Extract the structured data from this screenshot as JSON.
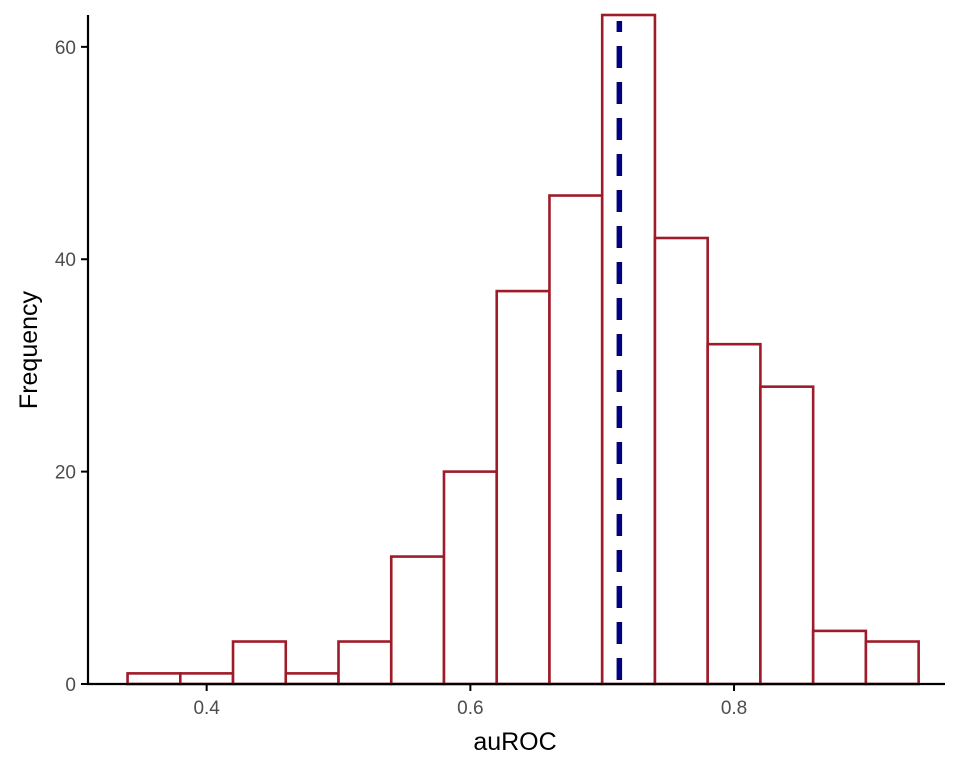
{
  "chart_data": {
    "type": "bar",
    "subtype": "histogram",
    "title": "",
    "xlabel": "auROC",
    "ylabel": "Frequency",
    "bin_width": 0.04,
    "bins": [
      {
        "start": 0.34,
        "end": 0.38,
        "count": 1
      },
      {
        "start": 0.38,
        "end": 0.42,
        "count": 1
      },
      {
        "start": 0.42,
        "end": 0.46,
        "count": 4
      },
      {
        "start": 0.46,
        "end": 0.5,
        "count": 1
      },
      {
        "start": 0.5,
        "end": 0.54,
        "count": 4
      },
      {
        "start": 0.54,
        "end": 0.58,
        "count": 12
      },
      {
        "start": 0.58,
        "end": 0.62,
        "count": 20
      },
      {
        "start": 0.62,
        "end": 0.66,
        "count": 37
      },
      {
        "start": 0.66,
        "end": 0.7,
        "count": 46
      },
      {
        "start": 0.7,
        "end": 0.74,
        "count": 63
      },
      {
        "start": 0.74,
        "end": 0.78,
        "count": 42
      },
      {
        "start": 0.78,
        "end": 0.82,
        "count": 32
      },
      {
        "start": 0.82,
        "end": 0.86,
        "count": 28
      },
      {
        "start": 0.86,
        "end": 0.9,
        "count": 5
      },
      {
        "start": 0.9,
        "end": 0.94,
        "count": 4
      }
    ],
    "reference_line": {
      "x": 0.713,
      "style": "dashed",
      "color": "#000080"
    },
    "xlim": [
      0.31,
      0.96
    ],
    "ylim": [
      0,
      63
    ],
    "x_ticks": [
      {
        "value": 0.4,
        "label": "0.4"
      },
      {
        "value": 0.6,
        "label": "0.6"
      },
      {
        "value": 0.8,
        "label": "0.8"
      }
    ],
    "y_ticks": [
      {
        "value": 0,
        "label": "0"
      },
      {
        "value": 20,
        "label": "20"
      },
      {
        "value": 40,
        "label": "40"
      },
      {
        "value": 60,
        "label": "60"
      }
    ],
    "grid": false,
    "colors": {
      "bar_outline": "#9e1b2a",
      "bar_fill": "#ffffff",
      "axis": "#000000"
    }
  }
}
